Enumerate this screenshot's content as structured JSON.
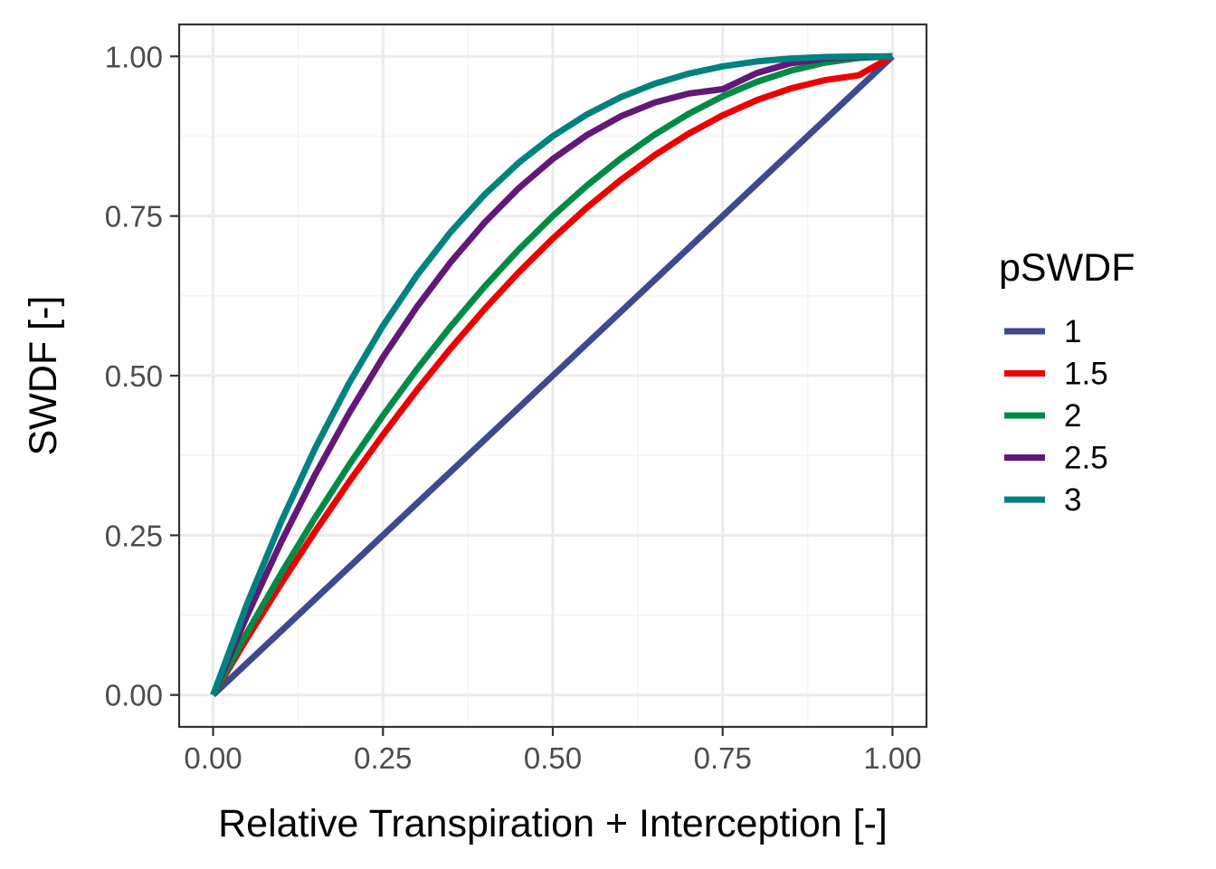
{
  "chart_data": {
    "type": "line",
    "xlabel": "Relative Transpiration + Interception [-]",
    "ylabel": "SWDF [-]",
    "xlim": [
      -0.05,
      1.05
    ],
    "ylim": [
      -0.05,
      1.05
    ],
    "x_ticks": [
      0,
      0.25,
      0.5,
      0.75,
      1
    ],
    "x_tick_labels": [
      "0.00",
      "0.25",
      "0.50",
      "0.75",
      "1.00"
    ],
    "y_ticks": [
      0,
      0.25,
      0.5,
      0.75,
      1
    ],
    "y_tick_labels": [
      "0.00",
      "0.25",
      "0.50",
      "0.75",
      "1.00"
    ],
    "grid": true,
    "legend": {
      "title": "pSWDF",
      "position": "right"
    },
    "x": [
      0,
      0.05,
      0.1,
      0.15,
      0.2,
      0.25,
      0.3,
      0.35,
      0.4,
      0.45,
      0.5,
      0.55,
      0.6,
      0.65,
      0.7,
      0.75,
      0.8,
      0.85,
      0.9,
      0.95,
      1
    ],
    "series": [
      {
        "name": "1",
        "color": "#3d4a8f",
        "values": [
          0,
          0.05,
          0.1,
          0.15,
          0.2,
          0.25,
          0.3,
          0.35,
          0.4,
          0.45,
          0.5,
          0.55,
          0.6,
          0.65,
          0.7,
          0.75,
          0.8,
          0.85,
          0.9,
          0.95,
          1
        ]
      },
      {
        "name": "1.5",
        "color": "#ee0000",
        "values": [
          0,
          0.0888,
          0.1741,
          0.2557,
          0.3335,
          0.4074,
          0.4773,
          0.5431,
          0.6047,
          0.6619,
          0.7147,
          0.763,
          0.8065,
          0.8452,
          0.879,
          0.9077,
          0.9313,
          0.9497,
          0.9627,
          0.9703,
          1
        ]
      },
      {
        "name": "2",
        "color": "#008b45",
        "values": [
          0,
          0.0975,
          0.19,
          0.2775,
          0.36,
          0.4375,
          0.51,
          0.5775,
          0.64,
          0.6975,
          0.75,
          0.7975,
          0.84,
          0.8775,
          0.91,
          0.9375,
          0.96,
          0.9775,
          0.99,
          0.9975,
          1
        ]
      },
      {
        "name": "2.5",
        "color": "#631879",
        "values": [
          0,
          0.1244,
          0.2391,
          0.3446,
          0.4411,
          0.5288,
          0.6078,
          0.6782,
          0.7402,
          0.7938,
          0.8393,
          0.8766,
          0.9061,
          0.9277,
          0.9418,
          0.9486,
          0.9738,
          0.9892,
          0.9964,
          0.9992,
          1
        ]
      },
      {
        "name": "3",
        "color": "#008280",
        "values": [
          0,
          0.1426,
          0.271,
          0.3859,
          0.488,
          0.5781,
          0.657,
          0.7254,
          0.784,
          0.8336,
          0.875,
          0.9089,
          0.936,
          0.9571,
          0.973,
          0.9844,
          0.992,
          0.9966,
          0.999,
          0.9999,
          1
        ]
      }
    ]
  },
  "colors": {
    "panel_border": "#333333",
    "grid_major": "#ebebeb",
    "grid_minor": "#f5f5f5",
    "tick_label": "#4d4d4d"
  }
}
